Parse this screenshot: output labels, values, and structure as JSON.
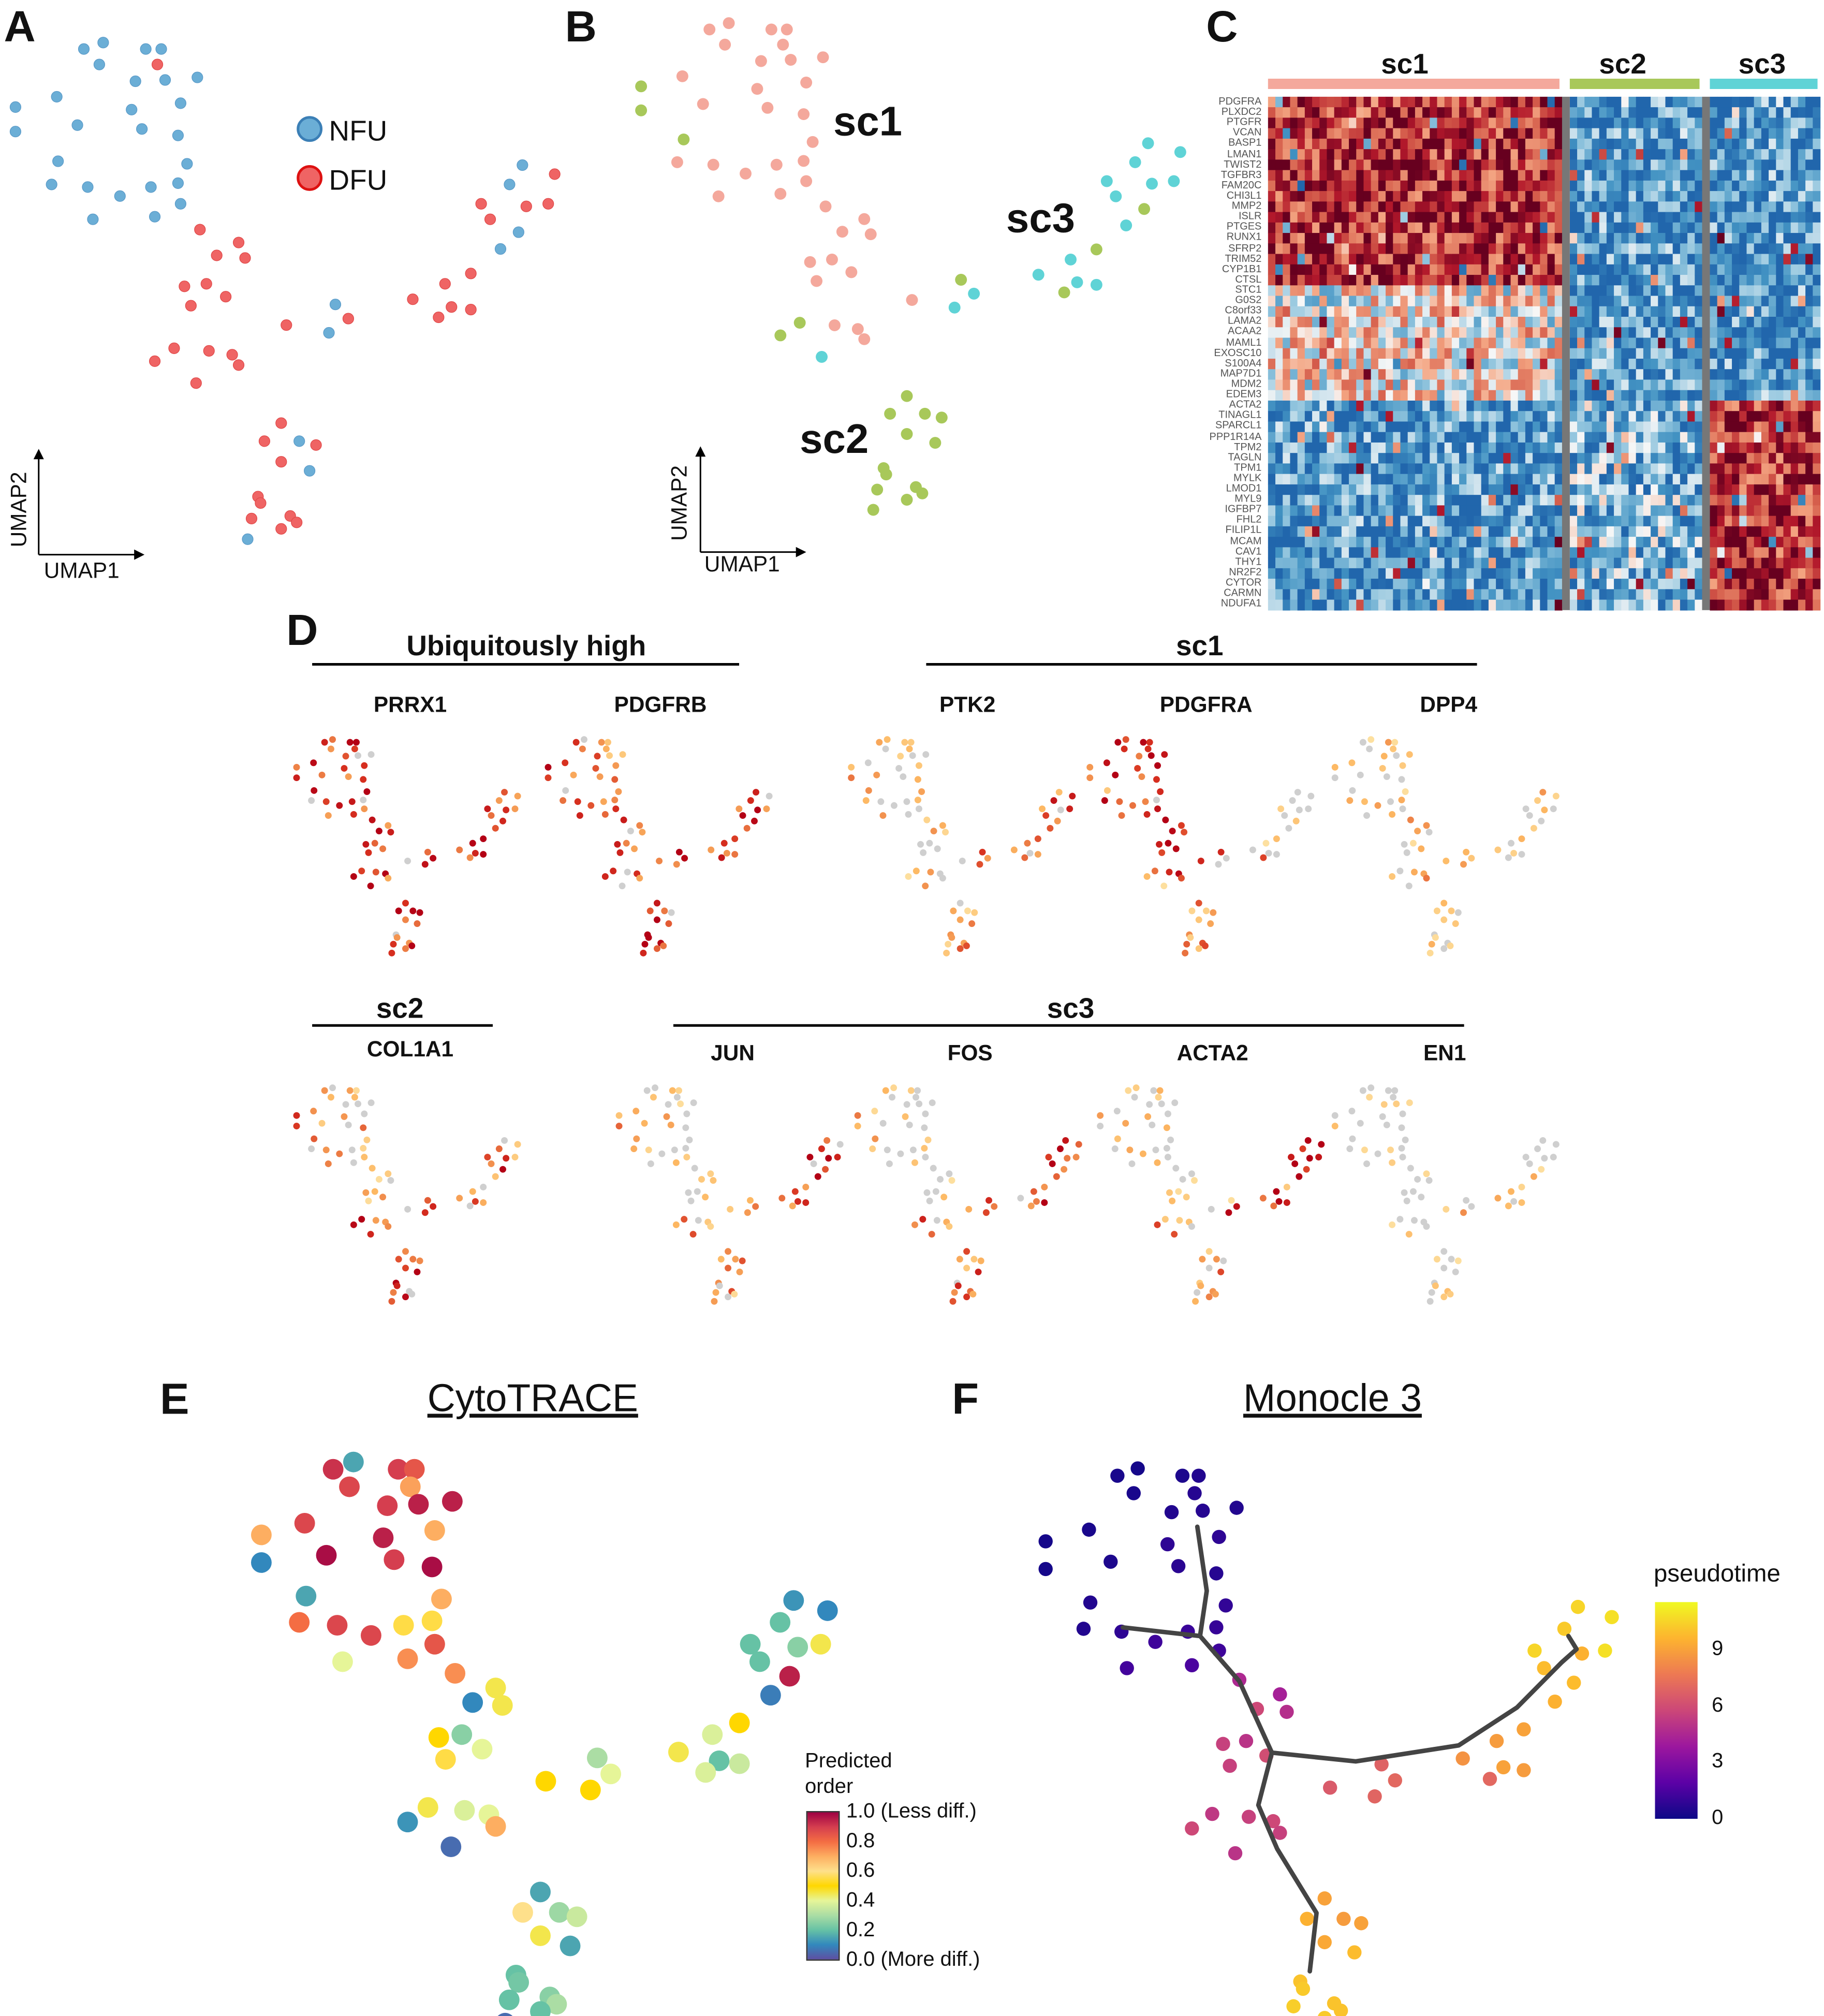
{
  "panels": {
    "A": "A",
    "B": "B",
    "C": "C",
    "D": "D",
    "E": "E",
    "F": "F"
  },
  "panel_a": {
    "legend": [
      {
        "label": "NFU",
        "color": "#6baed6",
        "group": "N"
      },
      {
        "label": "DFU",
        "color": "#ef6464",
        "group": "D"
      }
    ],
    "xlabel": "UMAP1",
    "ylabel": "UMAP2"
  },
  "panel_b": {
    "clusters": [
      {
        "label": "sc1",
        "color": "#f4a89c"
      },
      {
        "label": "sc2",
        "color": "#a8c85a"
      },
      {
        "label": "sc3",
        "color": "#5fd3d6"
      }
    ],
    "xlabel": "UMAP1",
    "ylabel": "UMAP2"
  },
  "panel_c": {
    "columns": [
      {
        "label": "sc1",
        "color": "#f4a89c",
        "n": 40
      },
      {
        "label": "sc2",
        "color": "#a8c85a",
        "n": 18
      },
      {
        "label": "sc3",
        "color": "#5fd3d6",
        "n": 15
      }
    ],
    "genes": [
      {
        "g": "PDGFRA",
        "m": 1
      },
      {
        "g": "PLXDC2",
        "m": 1
      },
      {
        "g": "PTGFR",
        "m": 1
      },
      {
        "g": "VCAN",
        "m": 1
      },
      {
        "g": "BASP1",
        "m": 1
      },
      {
        "g": "LMAN1",
        "m": 1
      },
      {
        "g": "TWIST2",
        "m": 1
      },
      {
        "g": "TGFBR3",
        "m": 1
      },
      {
        "g": "FAM20C",
        "m": 1
      },
      {
        "g": "CHI3L1",
        "m": 1
      },
      {
        "g": "MMP2",
        "m": 1
      },
      {
        "g": "ISLR",
        "m": 1
      },
      {
        "g": "PTGES",
        "m": 1
      },
      {
        "g": "RUNX1",
        "m": 1
      },
      {
        "g": "SFRP2",
        "m": 1
      },
      {
        "g": "TRIM52",
        "m": 1
      },
      {
        "g": "CYP1B1",
        "m": 1
      },
      {
        "g": "CTSL",
        "m": 1
      },
      {
        "g": "STC1",
        "m": 0.5
      },
      {
        "g": "G0S2",
        "m": 0.5
      },
      {
        "g": "C8orf33",
        "m": 0.5
      },
      {
        "g": "LAMA2",
        "m": 0.5
      },
      {
        "g": "ACAA2",
        "m": 0.5
      },
      {
        "g": "MAML1",
        "m": 0.5
      },
      {
        "g": "EXOSC10",
        "m": 0.5
      },
      {
        "g": "S100A4",
        "m": 0.5
      },
      {
        "g": "MAP7D1",
        "m": 0.5
      },
      {
        "g": "MDM2",
        "m": 0.5
      },
      {
        "g": "EDEM3",
        "m": 0.5
      },
      {
        "g": "ACTA2",
        "m": 3
      },
      {
        "g": "TINAGL1",
        "m": 3
      },
      {
        "g": "SPARCL1",
        "m": 3
      },
      {
        "g": "PPP1R14A",
        "m": 3
      },
      {
        "g": "TPM2",
        "m": 3
      },
      {
        "g": "TAGLN",
        "m": 3
      },
      {
        "g": "TPM1",
        "m": 3
      },
      {
        "g": "MYLK",
        "m": 3
      },
      {
        "g": "LMOD1",
        "m": 3
      },
      {
        "g": "MYL9",
        "m": 3
      },
      {
        "g": "IGFBP7",
        "m": 3
      },
      {
        "g": "FHL2",
        "m": 3
      },
      {
        "g": "FILIP1L",
        "m": 3
      },
      {
        "g": "MCAM",
        "m": 3
      },
      {
        "g": "CAV1",
        "m": 3
      },
      {
        "g": "THY1",
        "m": 3
      },
      {
        "g": "NR2F2",
        "m": 3
      },
      {
        "g": "CYTOR",
        "m": 3
      },
      {
        "g": "CARMN",
        "m": 3
      },
      {
        "g": "NDUFA1",
        "m": 3
      }
    ]
  },
  "panel_d": {
    "headers": [
      {
        "label": "Ubiquitously high"
      },
      {
        "label": "sc1"
      },
      {
        "label": "sc2"
      },
      {
        "label": "sc3"
      }
    ],
    "genes": [
      {
        "name": "PRRX1",
        "levels": [
          0.75,
          0.8,
          0.75
        ]
      },
      {
        "name": "PDGFRB",
        "levels": [
          0.6,
          0.85,
          0.8
        ]
      },
      {
        "name": "PTK2",
        "levels": [
          0.3,
          0.5,
          0.65
        ]
      },
      {
        "name": "PDGFRA",
        "levels": [
          0.9,
          0.55,
          0.0
        ]
      },
      {
        "name": "DPP4",
        "levels": [
          0.35,
          0.15,
          0.3
        ]
      },
      {
        "name": "COL1A1",
        "levels": [
          0.4,
          0.9,
          0.6
        ]
      },
      {
        "name": "JUN",
        "levels": [
          0.3,
          0.45,
          0.8
        ]
      },
      {
        "name": "FOS",
        "levels": [
          0.15,
          0.6,
          0.85
        ]
      },
      {
        "name": "ACTA2",
        "levels": [
          0.2,
          0.5,
          0.9
        ]
      },
      {
        "name": "EN1",
        "levels": [
          0.0,
          0.1,
          0.3
        ]
      }
    ]
  },
  "panel_e": {
    "title": "CytoTRACE",
    "legend_title": "Predicted order",
    "ticks": [
      "1.0 (Less diff.)",
      "0.8",
      "0.6",
      "0.4",
      "0.2",
      "0.0 (More diff.)"
    ]
  },
  "panel_f": {
    "title": "Monocle 3",
    "legend_title": "pseudotime",
    "ticks": [
      "9",
      "6",
      "3",
      "0"
    ],
    "range": [
      0,
      11.5
    ],
    "trajectory": [
      [
        [
          12.4,
          37.7
        ],
        [
          13.1,
          33.3
        ],
        [
          12.6,
          30.2
        ],
        [
          15.5,
          27.1
        ],
        [
          17.9,
          22.2
        ]
      ],
      [
        [
          6.9,
          30.8
        ],
        [
          12.6,
          30.2
        ]
      ],
      [
        [
          17.9,
          22.2
        ],
        [
          24.1,
          21.6
        ],
        [
          31.7,
          22.7
        ],
        [
          36.0,
          25.3
        ],
        [
          39.3,
          28.4
        ],
        [
          40.4,
          29.3
        ],
        [
          39.8,
          30.2
        ]
      ],
      [
        [
          17.9,
          22.2
        ],
        [
          16.9,
          18.6
        ],
        [
          18.3,
          15.6
        ],
        [
          21.2,
          11.2
        ],
        [
          20.7,
          7.2
        ]
      ]
    ]
  },
  "chart_data": {
    "type": "scatter",
    "xlabel": "UMAP1",
    "ylabel": "UMAP2",
    "fields": [
      "umap1",
      "umap2",
      "group",
      "cluster",
      "cytotrace",
      "pseudotime"
    ],
    "cells": [
      [
        6.5,
        41.2,
        "N",
        1,
        0.92,
        0.3
      ],
      [
        8.0,
        41.7,
        "N",
        1,
        0.15,
        0.2
      ],
      [
        11.3,
        41.2,
        "N",
        1,
        0.9,
        0.4
      ],
      [
        12.5,
        41.2,
        "N",
        1,
        0.85,
        0.5
      ],
      [
        7.7,
        40.0,
        "N",
        1,
        0.88,
        0.3
      ],
      [
        12.2,
        40.0,
        "D",
        1,
        0.72,
        0.6
      ],
      [
        10.5,
        38.7,
        "N",
        1,
        0.9,
        0.5
      ],
      [
        12.8,
        38.8,
        "N",
        1,
        0.95,
        0.6
      ],
      [
        15.3,
        39.0,
        "N",
        1,
        0.95,
        0.5
      ],
      [
        4.4,
        37.5,
        "N",
        1,
        0.88,
        0.3
      ],
      [
        14.0,
        37.0,
        "N",
        1,
        0.7,
        0.8
      ],
      [
        1.2,
        36.7,
        "N",
        2,
        0.7,
        0.2
      ],
      [
        10.2,
        36.5,
        "N",
        1,
        0.95,
        0.8
      ],
      [
        1.2,
        34.8,
        "N",
        2,
        0.1,
        0.2
      ],
      [
        6.0,
        35.3,
        "N",
        1,
        0.98,
        0.4
      ],
      [
        11.0,
        35.0,
        "N",
        1,
        0.9,
        0.7
      ],
      [
        13.8,
        34.5,
        "N",
        1,
        0.98,
        0.6
      ],
      [
        4.5,
        32.5,
        "N",
        2,
        0.15,
        0.5
      ],
      [
        14.5,
        32.3,
        "N",
        1,
        0.7,
        0.9
      ],
      [
        4.0,
        30.7,
        "N",
        1,
        0.8,
        0.5
      ],
      [
        6.8,
        30.5,
        "N",
        1,
        0.88,
        0.8
      ],
      [
        9.3,
        29.8,
        "N",
        1,
        0.88,
        1.2
      ],
      [
        11.7,
        30.5,
        "N",
        1,
        0.55,
        1.1
      ],
      [
        13.8,
        30.8,
        "N",
        1,
        0.55,
        1.0
      ],
      [
        7.2,
        28.0,
        "N",
        1,
        0.4,
        1.3
      ],
      [
        12.0,
        28.2,
        "N",
        1,
        0.75,
        1.5
      ],
      [
        14.0,
        29.2,
        "N",
        1,
        0.85,
        1.2
      ],
      [
        15.5,
        27.2,
        "D",
        1,
        0.75,
        4.5
      ],
      [
        18.5,
        26.2,
        "D",
        1,
        0.45,
        4.2
      ],
      [
        16.8,
        25.2,
        "D",
        1,
        0.1,
        5.8
      ],
      [
        19.0,
        25.0,
        "D",
        1,
        0.45,
        4.8
      ],
      [
        14.3,
        22.8,
        "D",
        1,
        0.5,
        5.5
      ],
      [
        16.0,
        23.0,
        "D",
        1,
        0.25,
        5.0
      ],
      [
        17.5,
        22.0,
        "D",
        1,
        0.4,
        6.0
      ],
      [
        14.8,
        21.3,
        "D",
        1,
        0.55,
        5.5
      ],
      [
        13.5,
        18.0,
        "D",
        2,
        0.45,
        5.2
      ],
      [
        12.0,
        17.0,
        "D",
        2,
        0.12,
        5.8
      ],
      [
        16.2,
        17.8,
        "D",
        1,
        0.38,
        5.5
      ],
      [
        18.0,
        17.5,
        "D",
        1,
        0.4,
        5.8
      ],
      [
        18.5,
        16.7,
        "D",
        1,
        0.7,
        5.5
      ],
      [
        15.2,
        15.3,
        "D",
        3,
        0.05,
        5.0
      ],
      [
        22.2,
        19.8,
        "D",
        1,
        0.5,
        6.5
      ],
      [
        26.0,
        21.4,
        "N",
        2,
        0.3,
        6.8
      ],
      [
        25.5,
        19.2,
        "N",
        3,
        0.5,
        6.9
      ],
      [
        27.0,
        20.3,
        "D",
        3,
        0.4,
        7.0
      ],
      [
        40.5,
        32.2,
        "N",
        3,
        0.12,
        10.5
      ],
      [
        43.0,
        31.5,
        "D",
        3,
        0.1,
        10.8
      ],
      [
        39.5,
        30.7,
        "N",
        3,
        0.2,
        10.2
      ],
      [
        37.3,
        29.2,
        "D",
        3,
        0.2,
        10.5
      ],
      [
        42.5,
        29.2,
        "D",
        3,
        0.45,
        10.8
      ],
      [
        40.8,
        29.0,
        "D",
        3,
        0.25,
        9.5
      ],
      [
        38.0,
        28.0,
        "D",
        3,
        0.2,
        9.8
      ],
      [
        40.2,
        27.0,
        "N",
        2,
        0.95,
        9.8
      ],
      [
        38.8,
        25.7,
        "N",
        3,
        0.08,
        9.5
      ],
      [
        36.5,
        23.8,
        "D",
        2,
        0.5,
        9.0
      ],
      [
        34.5,
        23.0,
        "D",
        3,
        0.38,
        8.8
      ],
      [
        32.0,
        21.8,
        "D",
        3,
        0.45,
        8.5
      ],
      [
        35.0,
        21.2,
        "D",
        3,
        0.2,
        9.0
      ],
      [
        36.5,
        21.0,
        "D",
        3,
        0.35,
        8.8
      ],
      [
        34.0,
        20.4,
        "D",
        2,
        0.38,
        7.0
      ],
      [
        21.8,
        12.2,
        "D",
        2,
        0.15,
        9.0
      ],
      [
        20.5,
        10.8,
        "D",
        2,
        0.6,
        9.5
      ],
      [
        23.2,
        10.8,
        "N",
        2,
        0.28,
        8.8
      ],
      [
        24.5,
        10.5,
        "D",
        2,
        0.35,
        9.0
      ],
      [
        21.8,
        9.2,
        "D",
        2,
        0.45,
        9.2
      ],
      [
        24.0,
        8.5,
        "N",
        2,
        0.15,
        9.8
      ],
      [
        20.0,
        6.5,
        "D",
        2,
        0.2,
        10.0
      ],
      [
        20.2,
        6.0,
        "D",
        2,
        0.22,
        10.2
      ],
      [
        22.5,
        5.0,
        "D",
        2,
        0.25,
        10.0
      ],
      [
        19.5,
        4.8,
        "D",
        2,
        0.2,
        10.3
      ],
      [
        23.0,
        4.5,
        "D",
        2,
        0.3,
        10.0
      ],
      [
        19.2,
        3.2,
        "N",
        2,
        0.05,
        10.5
      ],
      [
        21.8,
        4.0,
        "D",
        2,
        0.2,
        10.2
      ]
    ]
  }
}
